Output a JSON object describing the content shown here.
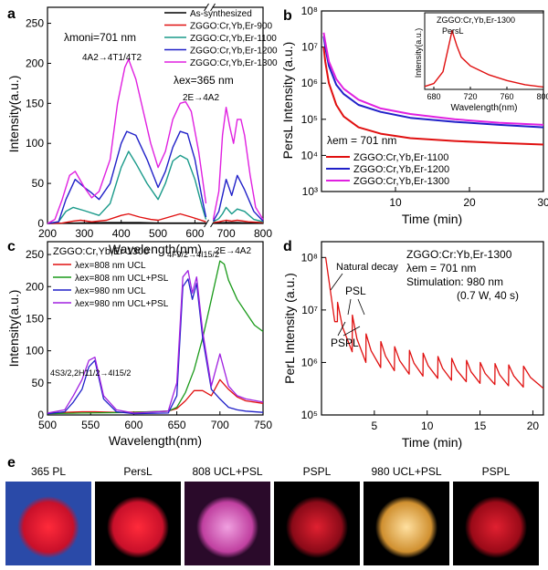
{
  "panels": {
    "a": {
      "letter": "a",
      "ylabel": "Intensity(a.u.)",
      "xlabel": "Wavelength(nm)",
      "yticks": [
        0,
        50,
        100,
        150,
        200,
        250
      ],
      "xticks": [
        200,
        300,
        400,
        500,
        600,
        700,
        800
      ],
      "annotations": {
        "lambda_moni": "λmoni=701 nm",
        "excitation_band": "4A2→4T1/4T2",
        "lambda_ex": "λex=365 nm",
        "emission_band": "2E→4A2"
      },
      "legend": [
        {
          "name": "As-synthesized",
          "color": "#000000"
        },
        {
          "name": "ZGGO:Cr,Yb,Er-900",
          "color": "#e01010"
        },
        {
          "name": "ZGGO:Cr,Yb,Er-1100",
          "color": "#1a9a8a"
        },
        {
          "name": "ZGGO:Cr,Yb,Er-1200",
          "color": "#2020c8"
        },
        {
          "name": "ZGGO:Cr,Yb,Er-1300",
          "color": "#e020e0"
        }
      ]
    },
    "b": {
      "letter": "b",
      "ylabel": "PersL Intensity (a.u.)",
      "xlabel": "Time (min)",
      "yticks": [
        "10³",
        "10⁴",
        "10⁵",
        "10⁶",
        "10⁷",
        "10⁸"
      ],
      "xticks": [
        10,
        20,
        30
      ],
      "lambda_em": "λem = 701 nm",
      "legend": [
        {
          "name": "ZGGO:Cr,Yb,Er-1100",
          "color": "#e01010"
        },
        {
          "name": "ZGGO:Cr,Yb,Er-1200",
          "color": "#2020c8"
        },
        {
          "name": "ZGGO:Cr,Yb,Er-1300",
          "color": "#e020e0"
        }
      ],
      "inset": {
        "title": "ZGGO:Cr,Yb,Er-1300",
        "label": "PersL",
        "ylabel": "Intensity(a.u.)",
        "xlabel": "Wavelength(nm)",
        "xticks": [
          680,
          720,
          760,
          800
        ]
      }
    },
    "c": {
      "letter": "c",
      "ylabel": "Intensity(a.u.)",
      "xlabel": "Wavelength(nm)",
      "yticks": [
        0,
        50,
        100,
        150,
        200,
        250
      ],
      "xticks": [
        500,
        550,
        600,
        650,
        700,
        750
      ],
      "sample": "ZGGO:Cr,Yb,Er-1300",
      "legend": [
        {
          "name": "λex=808 nm  UCL",
          "color": "#e01010"
        },
        {
          "name": "λex=808 nm  UCL+PSL",
          "color": "#1a9a1a"
        },
        {
          "name": "λex=980 nm  UCL",
          "color": "#2020c8"
        },
        {
          "name": "λex=980 nm  UCL+PSL",
          "color": "#a020e0"
        }
      ],
      "annotations": {
        "green_band": "4S3/2,2H11/2→4I15/2",
        "red_band": "4F9/2→4I15/2",
        "cr_band": "2E→4A2"
      }
    },
    "d": {
      "letter": "d",
      "ylabel": "PerL Intensity (a.u.)",
      "xlabel": "Time (min)",
      "yticks": [
        "10⁵",
        "10⁶",
        "10⁷",
        "10⁸"
      ],
      "xticks": [
        5,
        10,
        15,
        20
      ],
      "info": [
        "ZGGO:Cr:Yb,Er-1300",
        "λem = 701 nm",
        "Stimulation: 980 nm",
        "(0.7 W, 40 s)"
      ],
      "annotations": {
        "natural": "Natural decay",
        "psl": "PSL",
        "pspl": "PSPL"
      }
    },
    "e": {
      "letter": "e",
      "labels": [
        "365  PL",
        "PersL",
        "808  UCL+PSL",
        "PSPL",
        "980  UCL+PSL",
        "PSPL"
      ]
    }
  },
  "chart_data": [
    {
      "panel": "a",
      "type": "line",
      "xlabel": "Wavelength(nm)",
      "ylabel": "Intensity(a.u.)",
      "xlim": [
        200,
        800
      ],
      "ylim": [
        0,
        270
      ],
      "axis_break": [
        630,
        665
      ],
      "series": [
        {
          "name": "As-synthesized",
          "color": "#000000",
          "x": [
            200,
            280,
            360,
            400,
            450,
            500,
            550,
            600,
            630,
            665,
            700,
            730,
            760,
            800
          ],
          "y": [
            0,
            0.5,
            1,
            1,
            1,
            0.5,
            0.5,
            0.5,
            0.5,
            0.5,
            1,
            1,
            0.5,
            0.5
          ]
        },
        {
          "name": "ZGGO:Cr,Yb,Er-900",
          "color": "#e01010",
          "x": [
            200,
            240,
            270,
            290,
            320,
            360,
            400,
            420,
            450,
            480,
            500,
            530,
            560,
            590,
            630,
            665,
            680,
            700,
            715,
            730,
            760,
            800
          ],
          "y": [
            0,
            0.5,
            3,
            4,
            2,
            4,
            10,
            12,
            8,
            5,
            4,
            8,
            12,
            8,
            2,
            1,
            2,
            4,
            3,
            4,
            2,
            1
          ]
        },
        {
          "name": "ZGGO:Cr,Yb,Er-1100",
          "color": "#1a9a8a",
          "x": [
            200,
            230,
            250,
            270,
            300,
            340,
            370,
            400,
            420,
            440,
            470,
            500,
            520,
            540,
            560,
            580,
            600,
            620,
            630,
            665,
            680,
            690,
            700,
            715,
            730,
            750,
            775,
            800
          ],
          "y": [
            0,
            2,
            15,
            20,
            16,
            10,
            25,
            70,
            90,
            75,
            50,
            30,
            50,
            78,
            85,
            80,
            55,
            20,
            5,
            2,
            6,
            12,
            20,
            12,
            18,
            15,
            5,
            2
          ]
        },
        {
          "name": "ZGGO:Cr,Yb,Er-1200",
          "color": "#2020c8",
          "x": [
            200,
            230,
            250,
            275,
            300,
            320,
            340,
            370,
            400,
            415,
            440,
            470,
            500,
            520,
            540,
            560,
            580,
            600,
            620,
            630,
            665,
            680,
            690,
            700,
            715,
            730,
            750,
            775,
            800
          ],
          "y": [
            0,
            2,
            30,
            55,
            45,
            38,
            30,
            50,
            100,
            115,
            110,
            80,
            45,
            65,
            95,
            115,
            112,
            80,
            30,
            8,
            3,
            15,
            35,
            55,
            35,
            60,
            42,
            15,
            3
          ]
        },
        {
          "name": "ZGGO:Cr,Yb,Er-1300",
          "color": "#e020e0",
          "x": [
            200,
            220,
            240,
            260,
            275,
            300,
            320,
            340,
            370,
            390,
            410,
            420,
            440,
            460,
            480,
            500,
            520,
            540,
            560,
            575,
            590,
            610,
            630,
            665,
            680,
            690,
            700,
            710,
            720,
            730,
            740,
            750,
            765,
            780,
            800
          ],
          "y": [
            0,
            5,
            30,
            60,
            65,
            45,
            32,
            40,
            80,
            150,
            195,
            205,
            180,
            140,
            100,
            70,
            90,
            130,
            150,
            152,
            140,
            90,
            25,
            5,
            40,
            110,
            145,
            120,
            100,
            130,
            130,
            110,
            60,
            20,
            5
          ]
        }
      ]
    },
    {
      "panel": "b",
      "type": "line",
      "xlabel": "Time (min)",
      "ylabel": "PersL Intensity (a.u.)",
      "xlim": [
        0,
        30
      ],
      "ylim": [
        1000,
        100000000
      ],
      "yscale": "log",
      "series": [
        {
          "name": "ZGGO:Cr,Yb,Er-1100",
          "color": "#e01010",
          "x": [
            0.3,
            0.5,
            1,
            2,
            3,
            5,
            8,
            12,
            18,
            24,
            30
          ],
          "y": [
            10000000,
            4000000,
            1000000,
            250000,
            120000,
            60000,
            40000,
            30000,
            25000,
            22000,
            20000
          ]
        },
        {
          "name": "ZGGO:Cr,Yb,Er-1200",
          "color": "#2020c8",
          "x": [
            0.3,
            0.5,
            1,
            2,
            3,
            5,
            8,
            12,
            18,
            24,
            30
          ],
          "y": [
            20000000,
            10000000,
            3000000,
            900000,
            500000,
            250000,
            160000,
            110000,
            85000,
            70000,
            60000
          ]
        },
        {
          "name": "ZGGO:Cr,Yb,Er-1300",
          "color": "#e020e0",
          "x": [
            0.3,
            0.5,
            1,
            2,
            3,
            5,
            8,
            12,
            18,
            24,
            30
          ],
          "y": [
            25000000,
            14000000,
            4000000,
            1300000,
            700000,
            350000,
            200000,
            140000,
            100000,
            80000,
            70000
          ]
        }
      ],
      "inset": {
        "type": "line",
        "xlim": [
          670,
          800
        ],
        "x": [
          670,
          680,
          690,
          695,
          700,
          705,
          710,
          720,
          740,
          760,
          780,
          800
        ],
        "y": [
          0.05,
          0.1,
          0.3,
          0.65,
          1.0,
          0.75,
          0.55,
          0.4,
          0.25,
          0.15,
          0.08,
          0.04
        ]
      }
    },
    {
      "panel": "c",
      "type": "line",
      "xlabel": "Wavelength(nm)",
      "ylabel": "Intensity(a.u.)",
      "xlim": [
        500,
        750
      ],
      "ylim": [
        0,
        270
      ],
      "series": [
        {
          "name": "λex=808 nm  UCL",
          "color": "#e01010",
          "x": [
            500,
            520,
            540,
            555,
            580,
            620,
            640,
            650,
            660,
            670,
            680,
            690,
            700,
            710,
            720,
            730,
            750
          ],
          "y": [
            3,
            4,
            5,
            5,
            4,
            5,
            6,
            10,
            22,
            38,
            38,
            30,
            55,
            40,
            28,
            22,
            18
          ]
        },
        {
          "name": "λex=808 nm  UCL+PSL",
          "color": "#1a9a1a",
          "x": [
            500,
            540,
            600,
            640,
            650,
            660,
            670,
            680,
            690,
            700,
            705,
            710,
            715,
            720,
            730,
            740,
            750
          ],
          "y": [
            2,
            3,
            4,
            6,
            12,
            35,
            70,
            120,
            180,
            240,
            235,
            210,
            195,
            180,
            160,
            140,
            130
          ]
        },
        {
          "name": "λex=980 nm  UCL",
          "color": "#2020c8",
          "x": [
            500,
            520,
            530,
            540,
            548,
            555,
            565,
            580,
            600,
            640,
            650,
            657,
            663,
            668,
            673,
            680,
            690,
            700,
            710,
            720,
            730,
            750
          ],
          "y": [
            2,
            5,
            20,
            40,
            75,
            85,
            25,
            5,
            2,
            3,
            30,
            200,
            212,
            180,
            205,
            120,
            40,
            25,
            12,
            8,
            6,
            4
          ]
        },
        {
          "name": "λex=980 nm  UCL+PSL",
          "color": "#a020e0",
          "x": [
            500,
            520,
            530,
            540,
            548,
            555,
            565,
            580,
            600,
            640,
            650,
            657,
            663,
            668,
            673,
            680,
            690,
            700,
            710,
            720,
            730,
            750
          ],
          "y": [
            3,
            8,
            30,
            55,
            85,
            90,
            30,
            8,
            3,
            6,
            50,
            215,
            225,
            190,
            215,
            130,
            45,
            95,
            45,
            30,
            25,
            20
          ]
        }
      ]
    },
    {
      "panel": "d",
      "type": "line",
      "xlabel": "Time (min)",
      "ylabel": "PerL Intensity (a.u.)",
      "xlim": [
        0,
        21
      ],
      "ylim": [
        100000,
        200000000
      ],
      "yscale": "log",
      "series": [
        {
          "name": "ZGGO:Cr:Yb,Er-1300",
          "color": "#e01010",
          "peaks_t": [
            1.5,
            2.9,
            4.2,
            5.6,
            6.9,
            8.3,
            9.6,
            11.0,
            12.3,
            13.7,
            15.0,
            16.4,
            17.7,
            19.1
          ],
          "peak_y": [
            14000000,
            8000000,
            3500000,
            2500000,
            2000000,
            1700000,
            1500000,
            1300000,
            1200000,
            1100000,
            1000000,
            950000,
            900000,
            850000
          ],
          "trough_y": [
            6000000,
            1600000,
            1000000,
            800000,
            700000,
            600000,
            550000,
            500000,
            460000,
            430000,
            400000,
            380000,
            360000,
            340000
          ],
          "start": {
            "x": 0.4,
            "y": 100000000
          },
          "end": {
            "x": 21,
            "y": 320000
          }
        }
      ]
    }
  ]
}
